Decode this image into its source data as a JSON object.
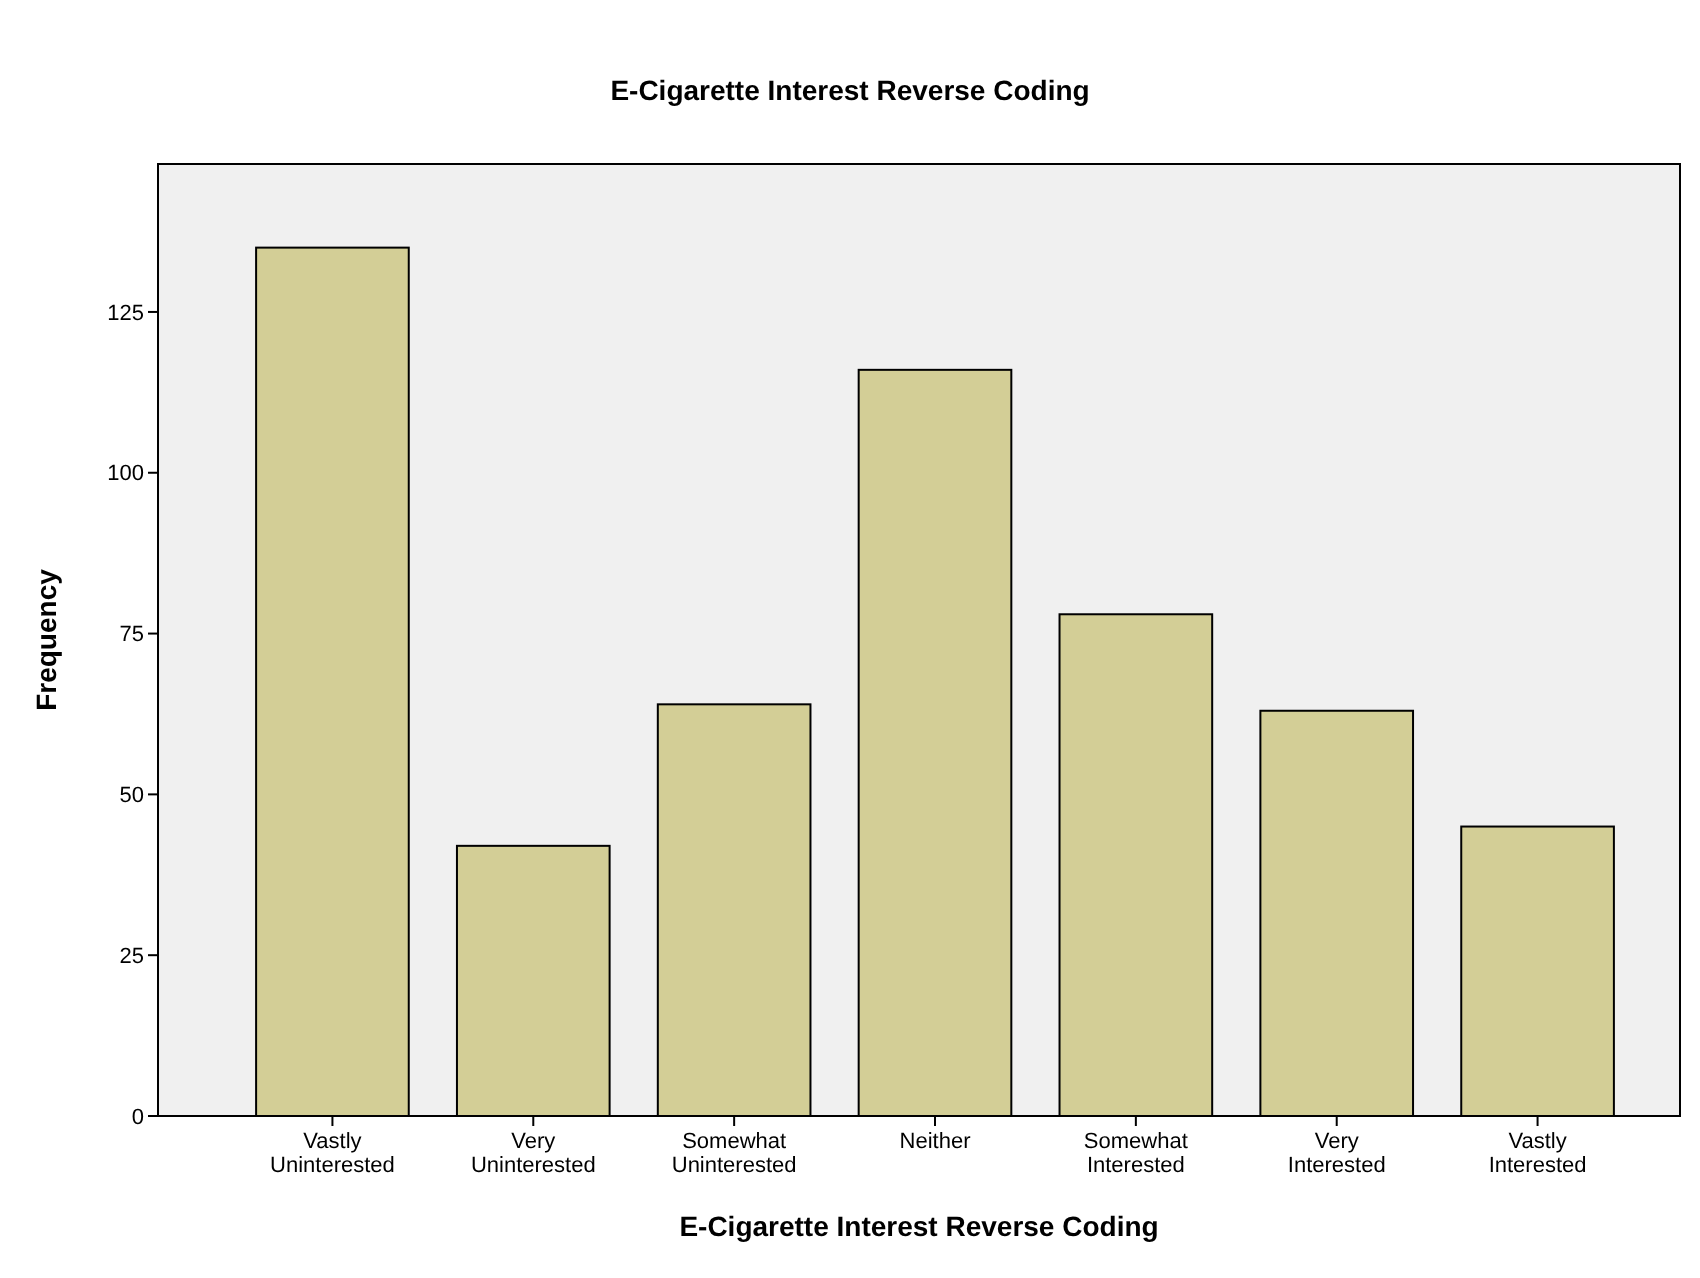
{
  "chart_data": {
    "type": "bar",
    "title": "E-Cigarette Interest Reverse Coding",
    "xlabel": "E-Cigarette Interest Reverse Coding",
    "ylabel": "Frequency",
    "categories": [
      "Vastly Uninterested",
      "Very Uninterested",
      "Somewhat Uninterested",
      "Neither",
      "Somewhat Interested",
      "Very Interested",
      "Vastly Interested"
    ],
    "values": [
      135,
      42,
      64,
      116,
      78,
      63,
      45
    ],
    "color": "#d3ce96",
    "ylim": [
      0,
      148
    ],
    "yticks": [
      0,
      25,
      50,
      75,
      100,
      125
    ],
    "grid": false
  }
}
